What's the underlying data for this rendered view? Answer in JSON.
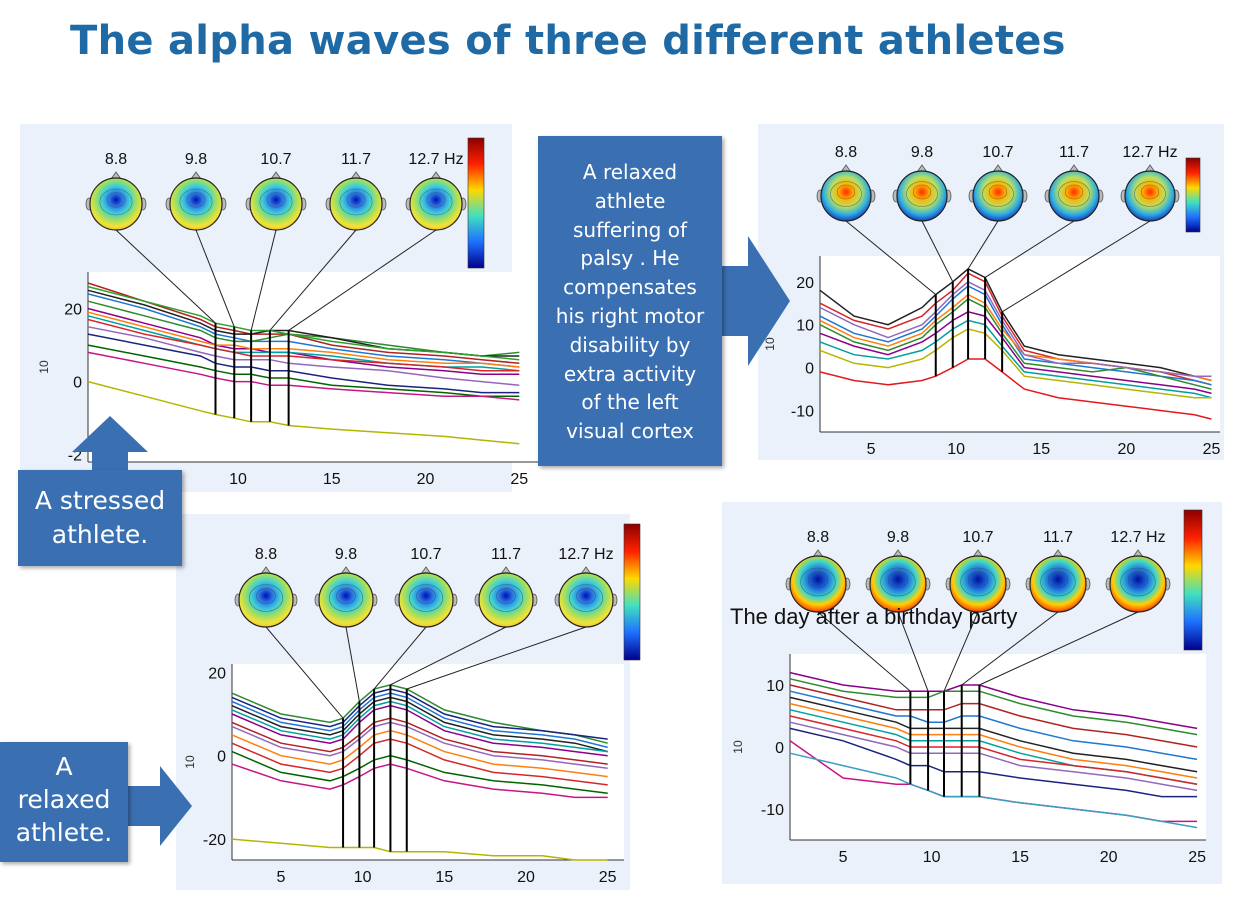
{
  "title": "The alpha waves of three different athletes",
  "colors": {
    "title": "#1f6aa5",
    "callout": "#3a70b2",
    "panel_bg": "#eaf1fb"
  },
  "callouts": {
    "stressed": [
      "A stressed",
      "athlete."
    ],
    "relaxed": [
      "A",
      "relaxed",
      "athlete."
    ],
    "palsy": [
      "A relaxed",
      "athlete",
      "suffering of",
      "palsy . He",
      "compensates",
      "his right motor",
      "disability  by",
      "extra activity",
      "of the left",
      "visual cortex"
    ]
  },
  "annotation": "The day after a birthday party",
  "chart_data": [
    {
      "type": "line",
      "id": "stressed",
      "freq_labels": [
        "8.8",
        "9.8",
        "10.7",
        "11.7",
        "12.7 Hz"
      ],
      "ylabel": "10",
      "x_ticks": [
        "10",
        "15",
        "20",
        "25"
      ],
      "y_ticks": [
        "20",
        "0",
        "-2"
      ],
      "xlim": [
        2,
        26
      ],
      "ylim": [
        -22,
        30
      ],
      "x": [
        2,
        5,
        8,
        8.8,
        9.8,
        10.7,
        11.7,
        12.7,
        15,
        18,
        21,
        23,
        25
      ],
      "series": [
        {
          "color": "#b22222",
          "values": [
            27,
            22,
            17,
            15,
            14,
            13,
            13,
            13,
            10,
            8,
            7,
            6,
            5
          ]
        },
        {
          "color": "#1f77d4",
          "values": [
            24,
            20,
            15,
            13,
            12,
            11,
            11,
            11,
            9,
            7,
            6,
            5,
            4
          ]
        },
        {
          "color": "#2e8b2e",
          "values": [
            22,
            18,
            14,
            12,
            11,
            11,
            12,
            13,
            12,
            10,
            8,
            7,
            8
          ]
        },
        {
          "color": "#8b008b",
          "values": [
            20,
            16,
            12,
            10,
            9,
            9,
            8,
            8,
            6,
            4,
            3,
            2,
            2
          ]
        },
        {
          "color": "#00a0a0",
          "values": [
            18,
            14,
            10,
            9,
            8,
            8,
            8,
            8,
            7,
            5,
            4,
            4,
            3
          ]
        },
        {
          "color": "#222222",
          "values": [
            25,
            21,
            16,
            14,
            13,
            13,
            14,
            14,
            12,
            9,
            8,
            7,
            7
          ]
        },
        {
          "color": "#d62728",
          "values": [
            17,
            13,
            10,
            9,
            8,
            7,
            7,
            7,
            6,
            5,
            4,
            3,
            3
          ]
        },
        {
          "color": "#9467bd",
          "values": [
            15,
            12,
            8,
            7,
            6,
            6,
            6,
            5,
            4,
            3,
            1,
            0,
            -1
          ]
        },
        {
          "color": "#1a237e",
          "values": [
            13,
            10,
            7,
            5,
            4,
            4,
            3,
            3,
            1,
            -1,
            -2,
            -3,
            -3
          ]
        },
        {
          "color": "#ff7f0e",
          "values": [
            19,
            15,
            11,
            10,
            10,
            9,
            9,
            9,
            8,
            6,
            5,
            5,
            4
          ]
        },
        {
          "color": "#006400",
          "values": [
            10,
            7,
            4,
            3,
            2,
            2,
            1,
            1,
            -1,
            -2,
            -3,
            -4,
            -4
          ]
        },
        {
          "color": "#c71585",
          "values": [
            8,
            5,
            2,
            1,
            0,
            0,
            -1,
            -1,
            -2,
            -3,
            -4,
            -4,
            -5
          ]
        },
        {
          "color": "#2ca02c",
          "values": [
            26,
            22,
            18,
            16,
            15,
            14,
            14,
            13,
            11,
            9,
            8,
            7,
            6
          ]
        },
        {
          "color": "#b5b500",
          "values": [
            0,
            -4,
            -8,
            -9,
            -10,
            -11,
            -11,
            -12,
            -13,
            -14,
            -15,
            -16,
            -17
          ]
        }
      ]
    },
    {
      "type": "line",
      "id": "palsy",
      "freq_labels": [
        "8.8",
        "9.8",
        "10.7",
        "11.7",
        "12.7 Hz"
      ],
      "ylabel": "10",
      "x_ticks": [
        "5",
        "10",
        "15",
        "20",
        "25"
      ],
      "y_ticks": [
        "20",
        "10",
        "0",
        "-10"
      ],
      "xlim": [
        2,
        25.5
      ],
      "ylim": [
        -15,
        26
      ],
      "x": [
        2,
        4,
        6,
        8,
        8.8,
        9.8,
        10.7,
        11.7,
        12.7,
        14,
        16,
        18,
        20,
        22,
        24,
        25
      ],
      "series": [
        {
          "color": "#d62728",
          "values": [
            15,
            11,
            9,
            12,
            15,
            18,
            22,
            20,
            12,
            4,
            2,
            1,
            0,
            -1,
            -3,
            -4
          ]
        },
        {
          "color": "#1f77d4",
          "values": [
            12,
            8,
            6,
            9,
            12,
            16,
            19,
            17,
            10,
            2,
            1,
            0,
            -1,
            -2,
            -3,
            -4
          ]
        },
        {
          "color": "#2e8b2e",
          "values": [
            10,
            6,
            4,
            7,
            10,
            13,
            16,
            14,
            8,
            1,
            0,
            -1,
            0,
            -2,
            -4,
            -5
          ]
        },
        {
          "color": "#222222",
          "values": [
            18,
            12,
            10,
            14,
            17,
            20,
            23,
            21,
            13,
            5,
            3,
            2,
            1,
            0,
            -2,
            -3
          ]
        },
        {
          "color": "#8b008b",
          "values": [
            8,
            5,
            3,
            6,
            8,
            11,
            13,
            12,
            7,
            0,
            -1,
            -2,
            -3,
            -4,
            -5,
            -6
          ]
        },
        {
          "color": "#00a0a0",
          "values": [
            6,
            3,
            2,
            4,
            6,
            9,
            11,
            10,
            5,
            -1,
            -2,
            -3,
            -4,
            -5,
            -6,
            -7
          ]
        },
        {
          "color": "#ff7f0e",
          "values": [
            11,
            7,
            5,
            8,
            11,
            14,
            17,
            15,
            9,
            3,
            2,
            1,
            0,
            -1,
            -2,
            -3
          ]
        },
        {
          "color": "#b5b500",
          "values": [
            4,
            1,
            0,
            2,
            4,
            7,
            9,
            8,
            4,
            -2,
            -3,
            -4,
            -5,
            -6,
            -7,
            -7
          ]
        },
        {
          "color": "#e31a1c",
          "values": [
            -1,
            -3,
            -4,
            -3,
            -2,
            0,
            2,
            2,
            -1,
            -5,
            -7,
            -8,
            -9,
            -10,
            -11,
            -12
          ]
        },
        {
          "color": "#9467bd",
          "values": [
            14,
            10,
            7,
            10,
            13,
            17,
            20,
            18,
            11,
            3,
            1,
            1,
            0,
            -1,
            -2,
            -2
          ]
        }
      ]
    },
    {
      "type": "line",
      "id": "relaxed",
      "freq_labels": [
        "8.8",
        "9.8",
        "10.7",
        "11.7",
        "12.7 Hz"
      ],
      "ylabel": "10",
      "x_ticks": [
        "5",
        "10",
        "15",
        "20",
        "25"
      ],
      "y_ticks": [
        "20",
        "0",
        "-20"
      ],
      "xlim": [
        2,
        26
      ],
      "ylim": [
        -25,
        22
      ],
      "x": [
        2,
        5,
        8,
        8.8,
        9.8,
        10.7,
        11.7,
        12.7,
        15,
        18,
        21,
        23,
        25
      ],
      "series": [
        {
          "color": "#2e8b2e",
          "values": [
            15,
            10,
            8,
            9,
            13,
            16,
            17,
            16,
            11,
            8,
            6,
            5,
            3
          ]
        },
        {
          "color": "#1f77d4",
          "values": [
            13,
            8,
            6,
            7,
            11,
            14,
            15,
            14,
            9,
            6,
            5,
            4,
            2
          ]
        },
        {
          "color": "#222222",
          "values": [
            12,
            7,
            5,
            6,
            10,
            13,
            14,
            13,
            8,
            5,
            4,
            3,
            1
          ]
        },
        {
          "color": "#b22222",
          "values": [
            8,
            3,
            1,
            2,
            5,
            8,
            9,
            8,
            4,
            1,
            0,
            -1,
            -2
          ]
        },
        {
          "color": "#8b008b",
          "values": [
            10,
            5,
            3,
            4,
            8,
            11,
            12,
            11,
            6,
            3,
            2,
            1,
            0
          ]
        },
        {
          "color": "#00a0a0",
          "values": [
            11,
            6,
            4,
            5,
            9,
            12,
            13,
            12,
            7,
            4,
            3,
            2,
            1
          ]
        },
        {
          "color": "#ff7f0e",
          "values": [
            5,
            0,
            -2,
            -1,
            2,
            5,
            6,
            5,
            1,
            -2,
            -3,
            -4,
            -5
          ]
        },
        {
          "color": "#d62728",
          "values": [
            3,
            -2,
            -4,
            -3,
            0,
            3,
            4,
            3,
            -1,
            -4,
            -5,
            -6,
            -7
          ]
        },
        {
          "color": "#9467bd",
          "values": [
            7,
            2,
            0,
            1,
            4,
            7,
            8,
            7,
            3,
            0,
            -1,
            -2,
            -3
          ]
        },
        {
          "color": "#1a237e",
          "values": [
            14,
            9,
            7,
            8,
            12,
            15,
            16,
            15,
            10,
            7,
            6,
            5,
            4
          ]
        },
        {
          "color": "#006400",
          "values": [
            1,
            -4,
            -6,
            -5,
            -3,
            -1,
            0,
            -1,
            -4,
            -6,
            -7,
            -8,
            -9
          ]
        },
        {
          "color": "#c71585",
          "values": [
            -2,
            -6,
            -8,
            -7,
            -5,
            -3,
            -2,
            -3,
            -6,
            -8,
            -9,
            -10,
            -10
          ]
        },
        {
          "color": "#b5b500",
          "values": [
            -20,
            -21,
            -22,
            -22,
            -22,
            -22,
            -23,
            -23,
            -23,
            -24,
            -24,
            -25,
            -25
          ]
        }
      ]
    },
    {
      "type": "line",
      "id": "birthday",
      "freq_labels": [
        "8.8",
        "9.8",
        "10.7",
        "11.7",
        "12.7 Hz"
      ],
      "ylabel": "10",
      "x_ticks": [
        "5",
        "10",
        "15",
        "20",
        "25"
      ],
      "y_ticks": [
        "10",
        "0",
        "-10"
      ],
      "xlim": [
        2,
        25.5
      ],
      "ylim": [
        -15,
        15
      ],
      "x": [
        2,
        5,
        8,
        8.8,
        9.8,
        10.7,
        11.7,
        12.7,
        15,
        18,
        21,
        23,
        25
      ],
      "series": [
        {
          "color": "#8b008b",
          "values": [
            12,
            10,
            9,
            9,
            9,
            9,
            10,
            10,
            8,
            6,
            5,
            4,
            3
          ]
        },
        {
          "color": "#2e8b2e",
          "values": [
            11,
            9,
            8,
            8,
            8,
            9,
            9,
            9,
            7,
            5,
            4,
            3,
            2
          ]
        },
        {
          "color": "#b22222",
          "values": [
            10,
            8,
            6,
            6,
            6,
            6,
            7,
            7,
            5,
            3,
            2,
            1,
            0
          ]
        },
        {
          "color": "#1f77d4",
          "values": [
            9,
            7,
            5,
            5,
            4,
            4,
            5,
            5,
            3,
            1,
            0,
            -1,
            -2
          ]
        },
        {
          "color": "#222222",
          "values": [
            8,
            6,
            4,
            3,
            3,
            3,
            3,
            3,
            1,
            -1,
            -2,
            -3,
            -4
          ]
        },
        {
          "color": "#00a0a0",
          "values": [
            6,
            4,
            2,
            1,
            1,
            1,
            1,
            1,
            -1,
            -3,
            -4,
            -5,
            -6
          ]
        },
        {
          "color": "#ff7f0e",
          "values": [
            7,
            5,
            3,
            2,
            2,
            2,
            2,
            2,
            0,
            -2,
            -3,
            -4,
            -5
          ]
        },
        {
          "color": "#9467bd",
          "values": [
            4,
            2,
            0,
            -1,
            -1,
            -1,
            -1,
            -1,
            -3,
            -4,
            -5,
            -6,
            -7
          ]
        },
        {
          "color": "#1a237e",
          "values": [
            3,
            1,
            -2,
            -3,
            -3,
            -4,
            -4,
            -4,
            -5,
            -6,
            -7,
            -8,
            -8
          ]
        },
        {
          "color": "#d62728",
          "values": [
            5,
            3,
            1,
            0,
            0,
            0,
            0,
            0,
            -2,
            -3,
            -4,
            -5,
            -6
          ]
        },
        {
          "color": "#c71585",
          "values": [
            1,
            -5,
            -6,
            -6,
            -7,
            -8,
            -8,
            -8,
            -9,
            -10,
            -11,
            -12,
            -12
          ]
        },
        {
          "color": "#3aa0c0",
          "values": [
            -1,
            -3,
            -5,
            -6,
            -7,
            -8,
            -8,
            -8,
            -9,
            -10,
            -11,
            -12,
            -13
          ]
        }
      ]
    }
  ]
}
